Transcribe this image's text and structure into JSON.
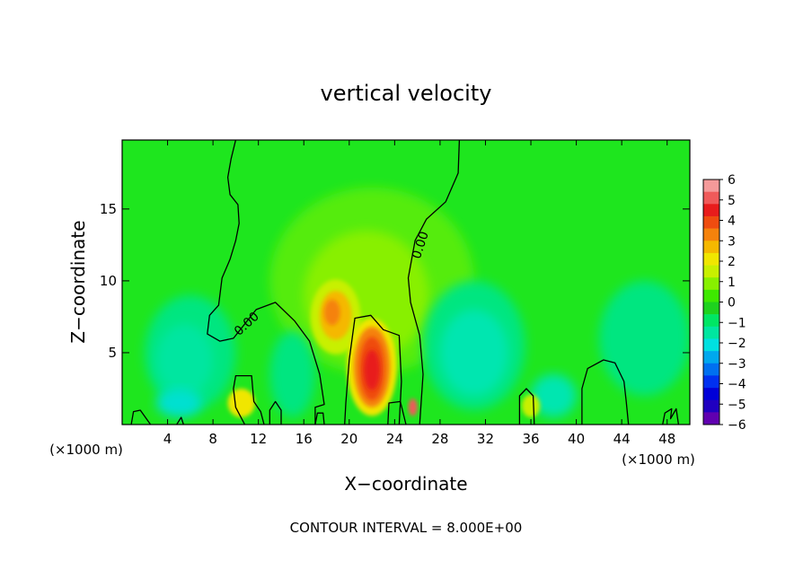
{
  "chart_data": {
    "type": "heatmap",
    "title": "vertical velocity",
    "xlabel": "X−coordinate",
    "ylabel": "Z−coordinate",
    "x_unit": "(×1000 m)",
    "y_unit": "(×1000 m)",
    "xlim": [
      0,
      50
    ],
    "ylim": [
      0,
      19.8
    ],
    "x_ticks": [
      4,
      8,
      12,
      16,
      20,
      24,
      28,
      32,
      36,
      40,
      44,
      48
    ],
    "y_ticks": [
      5,
      10,
      15
    ],
    "contour_label": "0.00",
    "footnote": "CONTOUR INTERVAL = 8.000E+00",
    "colorbar": {
      "ticks": [
        "6",
        "5",
        "4",
        "3",
        "2",
        "1",
        "0",
        "−1",
        "−2",
        "−3",
        "−4",
        "−5",
        "−6"
      ],
      "values": [
        6,
        5,
        4,
        3,
        2,
        1,
        0,
        -1,
        -2,
        -3,
        -4,
        -5,
        -6
      ],
      "colors": [
        "#f59a9a",
        "#f05a5a",
        "#e81c1c",
        "#ef4c10",
        "#f5820c",
        "#f5b800",
        "#f0e600",
        "#c8f000",
        "#88f000",
        "#3ee800",
        "#1ed21e",
        "#00e664",
        "#00e6a0",
        "#00e0e0",
        "#00a8ee",
        "#0070f0",
        "#0030f0",
        "#0000d8",
        "#2000c0",
        "#6000b0"
      ]
    },
    "field_features": [
      {
        "kind": "updraft",
        "x": 22,
        "z": 4,
        "peak": 5.5
      },
      {
        "kind": "updraft",
        "x": 18.8,
        "z": 7.5,
        "peak": 3
      },
      {
        "kind": "updraft",
        "x": 25.6,
        "z": 1.2,
        "peak": 4
      },
      {
        "kind": "downdraft",
        "x": 6,
        "z": 5,
        "peak": -1.2
      },
      {
        "kind": "downdraft",
        "x": 31,
        "z": 5,
        "peak": -1.6
      },
      {
        "kind": "downdraft",
        "x": 46,
        "z": 6,
        "peak": -1
      }
    ]
  }
}
